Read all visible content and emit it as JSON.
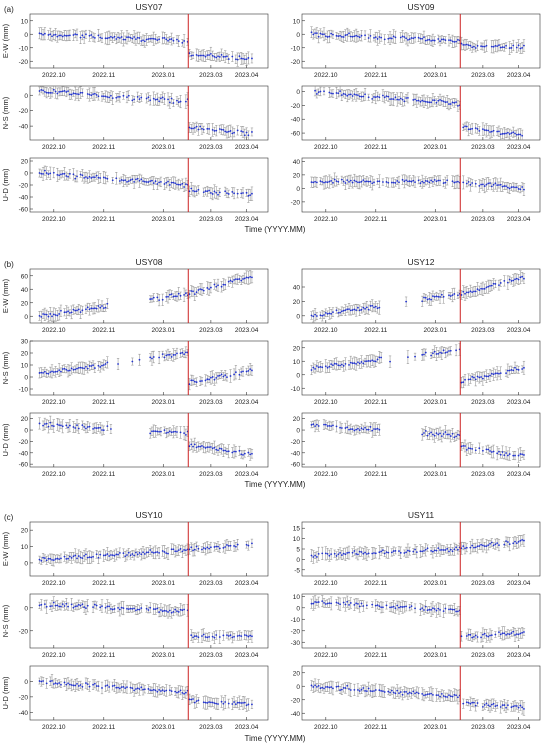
{
  "figure": {
    "xlabel": "Time (YYYY.MM)"
  },
  "x_ticks": [
    "2022.10",
    "2022.11",
    "2023.01",
    "2023.03",
    "2023.04"
  ],
  "event_date": "2023.02",
  "colors": {
    "points": "#2233cc",
    "errorbars": "#8a8a8a",
    "event_line": "#cc2222",
    "axes": "#333333"
  },
  "panels": [
    {
      "label": "(a)",
      "stations": [
        {
          "name": "USY07",
          "rows": [
            {
              "ylabel": "E-W (mm)",
              "yticks": [
                -20,
                -10,
                0,
                10
              ],
              "ylim": [
                -25,
                15
              ]
            },
            {
              "ylabel": "N-S (mm)",
              "yticks": [
                -40,
                -20,
                0
              ],
              "ylim": [
                -58,
                12
              ]
            },
            {
              "ylabel": "U-D (mm)",
              "yticks": [
                -60,
                -40,
                -20,
                0,
                20
              ],
              "ylim": [
                -65,
                25
              ]
            }
          ]
        },
        {
          "name": "USY09",
          "rows": [
            {
              "ylabel": "",
              "yticks": [
                -20,
                -10,
                0,
                10
              ],
              "ylim": [
                -25,
                15
              ]
            },
            {
              "ylabel": "",
              "yticks": [
                -60,
                -40,
                -20,
                0
              ],
              "ylim": [
                -70,
                8
              ]
            },
            {
              "ylabel": "",
              "yticks": [
                -20,
                0,
                20,
                40
              ],
              "ylim": [
                -35,
                45
              ]
            }
          ]
        }
      ]
    },
    {
      "label": "(b)",
      "stations": [
        {
          "name": "USY08",
          "rows": [
            {
              "ylabel": "E-W (mm)",
              "yticks": [
                0,
                20,
                40,
                60
              ],
              "ylim": [
                -10,
                70
              ]
            },
            {
              "ylabel": "N-S (mm)",
              "yticks": [
                -10,
                0,
                10,
                20,
                30
              ],
              "ylim": [
                -15,
                30
              ]
            },
            {
              "ylabel": "U-D (mm)",
              "yticks": [
                -60,
                -40,
                -20,
                0,
                20
              ],
              "ylim": [
                -65,
                30
              ]
            }
          ]
        },
        {
          "name": "USY12",
          "rows": [
            {
              "ylabel": "",
              "yticks": [
                0,
                20,
                40
              ],
              "ylim": [
                -10,
                65
              ]
            },
            {
              "ylabel": "",
              "yticks": [
                -10,
                0,
                10,
                20
              ],
              "ylim": [
                -15,
                25
              ]
            },
            {
              "ylabel": "",
              "yticks": [
                -60,
                -40,
                -20,
                0,
                20
              ],
              "ylim": [
                -65,
                30
              ]
            }
          ]
        }
      ]
    },
    {
      "label": "(c)",
      "stations": [
        {
          "name": "USY10",
          "rows": [
            {
              "ylabel": "E-W (mm)",
              "yticks": [
                0,
                10,
                20
              ],
              "ylim": [
                -8,
                25
              ]
            },
            {
              "ylabel": "N-S (mm)",
              "yticks": [
                -20,
                0
              ],
              "ylim": [
                -35,
                12
              ]
            },
            {
              "ylabel": "U-D (mm)",
              "yticks": [
                -40,
                -20,
                0
              ],
              "ylim": [
                -50,
                20
              ]
            }
          ]
        },
        {
          "name": "USY11",
          "rows": [
            {
              "ylabel": "",
              "yticks": [
                -5,
                0,
                5,
                10,
                15
              ],
              "ylim": [
                -8,
                18
              ]
            },
            {
              "ylabel": "",
              "yticks": [
                -30,
                -20,
                -10,
                0,
                10
              ],
              "ylim": [
                -35,
                12
              ]
            },
            {
              "ylabel": "",
              "yticks": [
                -40,
                -20,
                0,
                20
              ],
              "ylim": [
                -50,
                30
              ]
            }
          ]
        }
      ]
    }
  ],
  "chart_data": {
    "type": "scatter",
    "description_of_marks": "daily displacement time series with error bars",
    "xlabel": "Time (YYYY.MM)",
    "x_ticks": [
      "2022.10",
      "2022.11",
      "2023.01",
      "2023.03",
      "2023.04"
    ],
    "event_line_x": "2023.02",
    "series_trends": [
      {
        "station": "USY07",
        "component": "E-W",
        "before": [
          0,
          -5
        ],
        "after": [
          -15,
          -18
        ]
      },
      {
        "station": "USY07",
        "component": "N-S",
        "before": [
          5,
          -8
        ],
        "after": [
          -42,
          -50
        ]
      },
      {
        "station": "USY07",
        "component": "U-D",
        "before": [
          0,
          -20
        ],
        "after": [
          -30,
          -35
        ]
      },
      {
        "station": "USY09",
        "component": "E-W",
        "before": [
          0,
          -5
        ],
        "after": [
          -8,
          -10
        ]
      },
      {
        "station": "USY09",
        "component": "N-S",
        "before": [
          0,
          -18
        ],
        "after": [
          -52,
          -64
        ]
      },
      {
        "station": "USY09",
        "component": "U-D",
        "before": [
          10,
          10
        ],
        "after": [
          10,
          0
        ]
      },
      {
        "station": "USY08",
        "component": "E-W",
        "before": [
          0,
          33
        ],
        "after": [
          33,
          60
        ]
      },
      {
        "station": "USY08",
        "component": "N-S",
        "before": [
          3,
          20
        ],
        "after": [
          -5,
          6
        ]
      },
      {
        "station": "USY08",
        "component": "U-D",
        "before": [
          10,
          -5
        ],
        "after": [
          -25,
          -45
        ]
      },
      {
        "station": "USY12",
        "component": "E-W",
        "before": [
          0,
          30
        ],
        "after": [
          30,
          55
        ]
      },
      {
        "station": "USY12",
        "component": "N-S",
        "before": [
          5,
          18
        ],
        "after": [
          -5,
          6
        ]
      },
      {
        "station": "USY12",
        "component": "U-D",
        "before": [
          8,
          -10
        ],
        "after": [
          -30,
          -45
        ]
      },
      {
        "station": "USY10",
        "component": "E-W",
        "before": [
          2,
          8
        ],
        "after": [
          8,
          12
        ]
      },
      {
        "station": "USY10",
        "component": "N-S",
        "before": [
          3,
          -3
        ],
        "after": [
          -25,
          -25
        ]
      },
      {
        "station": "USY10",
        "component": "U-D",
        "before": [
          0,
          -15
        ],
        "after": [
          -25,
          -30
        ]
      },
      {
        "station": "USY11",
        "component": "E-W",
        "before": [
          2,
          5
        ],
        "after": [
          5,
          9
        ]
      },
      {
        "station": "USY11",
        "component": "N-S",
        "before": [
          5,
          -2
        ],
        "after": [
          -25,
          -22
        ]
      },
      {
        "station": "USY11",
        "component": "U-D",
        "before": [
          0,
          -15
        ],
        "after": [
          -25,
          -30
        ]
      }
    ]
  }
}
